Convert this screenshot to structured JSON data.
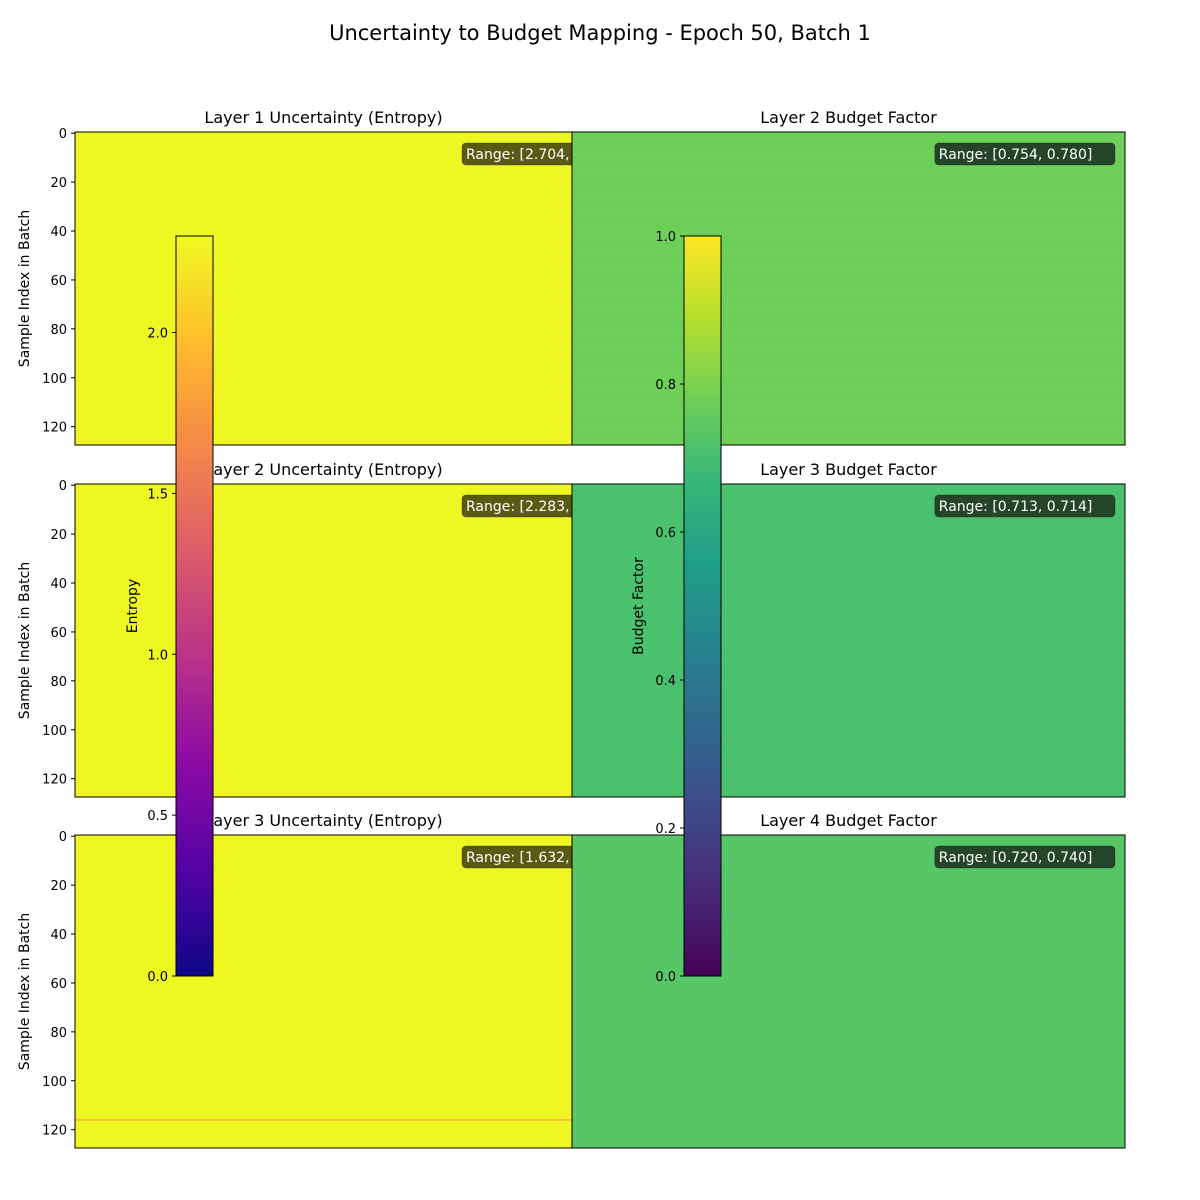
{
  "title": "Uncertainty to Budget Mapping - Epoch 50, Batch 1",
  "colors": {
    "uncertainty_fill": "#eef722",
    "uncertainty_highlight": "#ff9f4a",
    "range_box_left": "#5a5a14",
    "range_box_right": "#24452a",
    "range_text": "#ffffff",
    "plasma": [
      "#0d0887",
      "#5302a3",
      "#8b0aa5",
      "#b83289",
      "#db5c68",
      "#f48849",
      "#febd2a",
      "#f0f921"
    ],
    "viridis": [
      "#440154",
      "#482878",
      "#3e4989",
      "#31688e",
      "#26828e",
      "#1f9e89",
      "#35b779",
      "#6ece58",
      "#b5de2b",
      "#fde725"
    ]
  },
  "chart_data": [
    {
      "type": "heatmap",
      "title": "Layer 1 Uncertainty (Entropy)",
      "ylabel": "Sample Index in Batch",
      "y_ticks": [
        0,
        20,
        40,
        60,
        80,
        100,
        120
      ],
      "ylim": [
        127.5,
        -0.5
      ],
      "range_label": "Range: [2.704,",
      "fill": "#eef722",
      "highlight_rows": []
    },
    {
      "type": "heatmap",
      "title": "Layer 2 Budget Factor",
      "range_label": "Range: [0.754, 0.780]",
      "fill": "#6ccf57",
      "value_range": [
        0.754,
        0.78
      ]
    },
    {
      "type": "heatmap",
      "title": "Layer 2 Uncertainty (Entropy)",
      "ylabel": "Sample Index in Batch",
      "y_ticks": [
        0,
        20,
        40,
        60,
        80,
        100,
        120
      ],
      "ylim": [
        127.5,
        -0.5
      ],
      "range_label": "Range: [2.283,",
      "fill": "#eef722",
      "highlight_rows": []
    },
    {
      "type": "heatmap",
      "title": "Layer 3 Budget Factor",
      "range_label": "Range: [0.713, 0.714]",
      "fill": "#4ac16d",
      "value_range": [
        0.713,
        0.714
      ]
    },
    {
      "type": "heatmap",
      "title": "Layer 3 Uncertainty (Entropy)",
      "ylabel": "Sample Index in Batch",
      "y_ticks": [
        0,
        20,
        40,
        60,
        80,
        100,
        120
      ],
      "ylim": [
        127.5,
        -0.5
      ],
      "range_label": "Range: [1.632,",
      "fill": "#eef722",
      "highlight_rows": [
        116
      ]
    },
    {
      "type": "heatmap",
      "title": "Layer 4 Budget Factor",
      "range_label": "Range: [0.720, 0.740]",
      "fill": "#56c666",
      "value_range": [
        0.72,
        0.74
      ]
    }
  ],
  "colorbars": [
    {
      "label": "Entropy",
      "cmap": "plasma",
      "ticks": [
        0.0,
        0.5,
        1.0,
        1.5,
        2.0
      ],
      "tick_labels": [
        "0.0",
        "0.5",
        "1.0",
        "1.5",
        "2.0"
      ],
      "range": [
        0,
        2.3
      ]
    },
    {
      "label": "Budget Factor",
      "cmap": "viridis",
      "ticks": [
        0.0,
        0.2,
        0.4,
        0.6,
        0.8,
        1.0
      ],
      "tick_labels": [
        "0.0",
        "0.2",
        "0.4",
        "0.6",
        "0.8",
        "1.0"
      ],
      "range": [
        0,
        1.0
      ]
    }
  ]
}
